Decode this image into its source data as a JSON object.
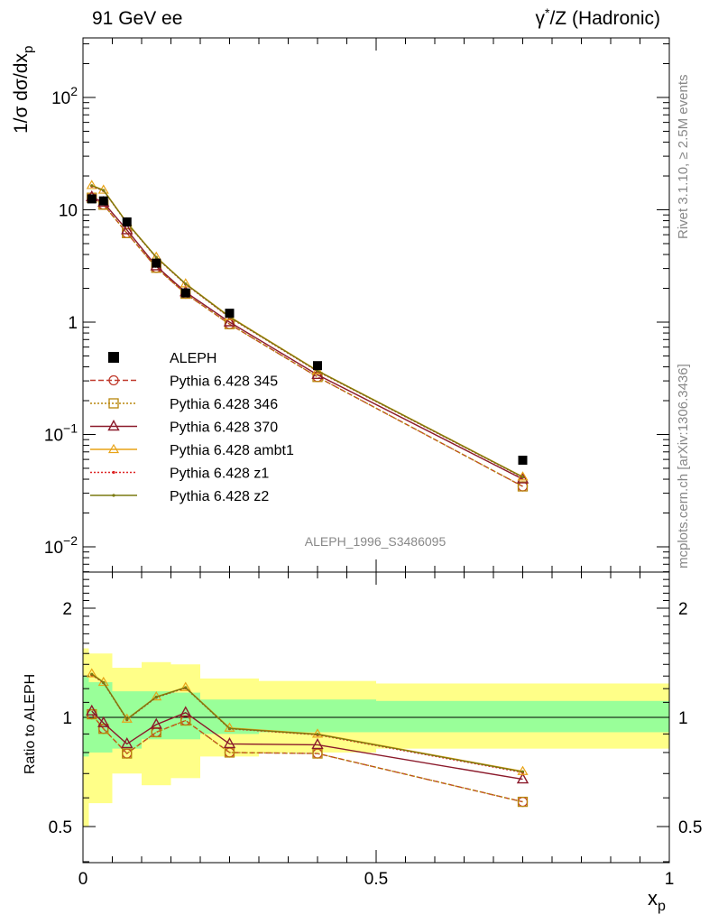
{
  "header": {
    "left": "91 GeV ee",
    "right_prefix": "γ",
    "right_sup": "*",
    "right_suffix": "/Z (Hadronic)"
  },
  "side": {
    "rivet": "Rivet 3.1.10, ≥ 2.5M events",
    "mcplots": "mcplots.cern.ch [arXiv:1306.3436]"
  },
  "chart_data": [
    {
      "type": "line",
      "name": "main",
      "analysis": "ALEPH_1996_S3486095",
      "ylabel": "1/σ dσ/dx_p",
      "yscale": "log",
      "ylim": [
        0.005,
        400
      ],
      "xlim": [
        0,
        1
      ],
      "ytick_labels": [
        "10⁻²",
        "10⁻¹",
        "1",
        "10",
        "10²"
      ],
      "x": [
        0.015,
        0.035,
        0.075,
        0.125,
        0.175,
        0.25,
        0.4,
        0.75
      ],
      "data": {
        "name": "ALEPH",
        "y": [
          12.5,
          12.0,
          7.8,
          3.35,
          1.82,
          1.2,
          0.41,
          0.059
        ]
      },
      "series": [
        {
          "name": "Pythia 6.428 345",
          "color": "#c0392b",
          "marker": "circle",
          "dash": "dashed",
          "y": [
            12.8,
            11.1,
            6.2,
            3.05,
            1.79,
            0.96,
            0.325,
            0.0345
          ]
        },
        {
          "name": "Pythia 6.428 346",
          "color": "#b8860b",
          "marker": "square",
          "dash": "dotted",
          "y": [
            12.8,
            11.1,
            6.2,
            3.05,
            1.79,
            0.96,
            0.325,
            0.0345
          ]
        },
        {
          "name": "Pythia 6.428 370",
          "color": "#8b1a2b",
          "marker": "triangle",
          "dash": "solid",
          "y": [
            13.0,
            11.6,
            6.6,
            3.15,
            1.85,
            1.0,
            0.34,
            0.04
          ]
        },
        {
          "name": "Pythia 6.428 ambt1",
          "color": "#e8a317",
          "marker": "triangle-small",
          "dash": "solid",
          "y": [
            16.5,
            15.0,
            7.7,
            3.8,
            2.2,
            1.12,
            0.37,
            0.042
          ]
        },
        {
          "name": "Pythia 6.428 z1",
          "color": "#dd2222",
          "marker": "dot",
          "dash": "dotted",
          "y": [
            16.2,
            14.8,
            7.6,
            3.75,
            2.17,
            1.1,
            0.365,
            0.0415
          ]
        },
        {
          "name": "Pythia 6.428 z2",
          "color": "#7a7a10",
          "marker": "dot",
          "dash": "solid",
          "y": [
            16.4,
            14.9,
            7.65,
            3.78,
            2.19,
            1.11,
            0.368,
            0.0418
          ]
        }
      ]
    },
    {
      "type": "line",
      "name": "ratio",
      "ylabel": "Ratio to ALEPH",
      "xlabel": "x_p",
      "yscale": "log",
      "ylim": [
        0.4,
        2.5
      ],
      "xlim": [
        0,
        1
      ],
      "xtick_labels": [
        "0",
        "0.5",
        "1"
      ],
      "ytick_labels": [
        "0.5",
        "1",
        "2"
      ],
      "bands": [
        {
          "x0": 0.0,
          "x1": 0.01,
          "inner": [
            0.78,
            1.3
          ],
          "outer": [
            0.5,
            1.55
          ]
        },
        {
          "x0": 0.01,
          "x1": 0.05,
          "inner": [
            0.8,
            1.25
          ],
          "outer": [
            0.58,
            1.5
          ]
        },
        {
          "x0": 0.05,
          "x1": 0.1,
          "inner": [
            0.82,
            1.18
          ],
          "outer": [
            0.7,
            1.37
          ]
        },
        {
          "x0": 0.1,
          "x1": 0.15,
          "inner": [
            0.87,
            1.18
          ],
          "outer": [
            0.65,
            1.42
          ]
        },
        {
          "x0": 0.15,
          "x1": 0.2,
          "inner": [
            0.87,
            1.17
          ],
          "outer": [
            0.68,
            1.4
          ]
        },
        {
          "x0": 0.2,
          "x1": 0.3,
          "inner": [
            0.9,
            1.12
          ],
          "outer": [
            0.78,
            1.28
          ]
        },
        {
          "x0": 0.3,
          "x1": 0.5,
          "inner": [
            0.91,
            1.12
          ],
          "outer": [
            0.8,
            1.26
          ]
        },
        {
          "x0": 0.5,
          "x1": 1.0,
          "inner": [
            0.91,
            1.11
          ],
          "outer": [
            0.82,
            1.24
          ]
        }
      ],
      "series": [
        {
          "name": "Pythia 6.428 345",
          "y": [
            1.02,
            0.93,
            0.795,
            0.91,
            0.98,
            0.8,
            0.795,
            0.585
          ]
        },
        {
          "name": "Pythia 6.428 346",
          "y": [
            1.02,
            0.93,
            0.795,
            0.91,
            0.98,
            0.8,
            0.795,
            0.585
          ]
        },
        {
          "name": "Pythia 6.428 370",
          "y": [
            1.04,
            0.965,
            0.845,
            0.955,
            1.03,
            0.845,
            0.84,
            0.675
          ]
        },
        {
          "name": "Pythia 6.428 ambt1",
          "y": [
            1.32,
            1.25,
            0.99,
            1.14,
            1.21,
            0.935,
            0.9,
            0.71
          ]
        },
        {
          "name": "Pythia 6.428 z1",
          "y": [
            1.31,
            1.245,
            0.985,
            1.135,
            1.205,
            0.93,
            0.895,
            0.705
          ]
        },
        {
          "name": "Pythia 6.428 z2",
          "y": [
            1.315,
            1.248,
            0.988,
            1.138,
            1.208,
            0.932,
            0.898,
            0.708
          ]
        }
      ]
    }
  ]
}
